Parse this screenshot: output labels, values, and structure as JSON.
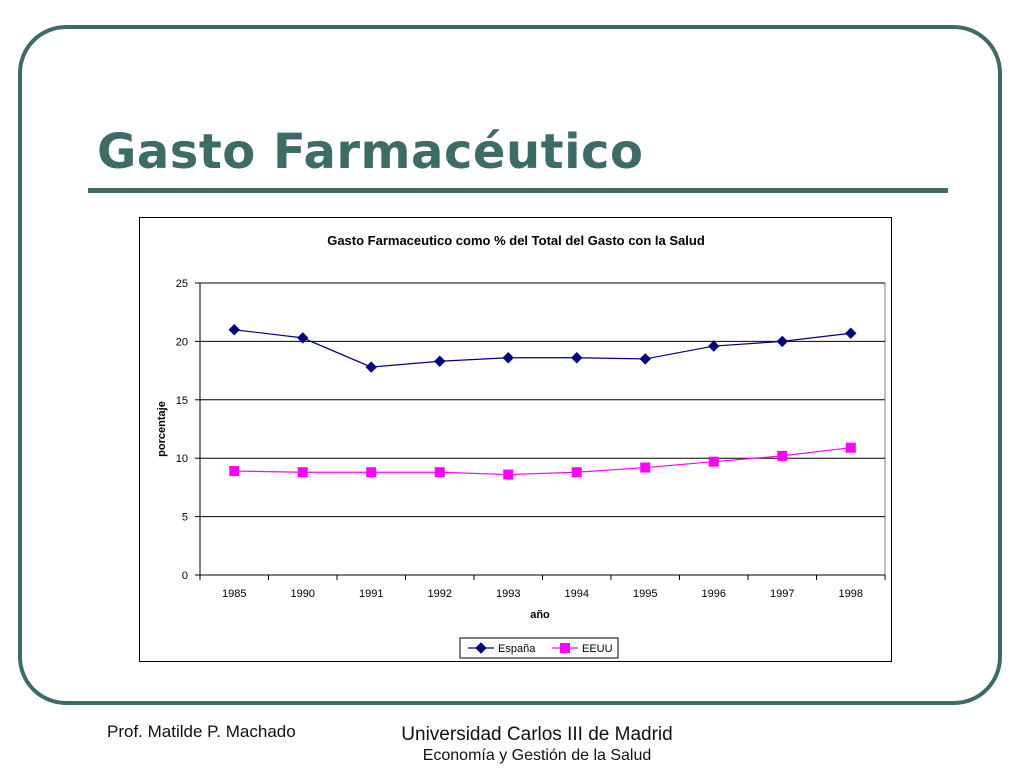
{
  "slide": {
    "title": "Gasto Farmacéutico",
    "footer_author": "Prof. Matilde P. Machado",
    "footer_university": "Universidad Carlos III de Madrid",
    "footer_department": "Economía y Gestión de la Salud"
  },
  "colors": {
    "accent": "#3d6b66",
    "espana": "#000080",
    "eeuu": "#ff00ff"
  },
  "chart_data": {
    "type": "line",
    "title": "Gasto Farmaceutico como % del Total del Gasto con la Salud",
    "xlabel": "año",
    "ylabel": "porcentaje",
    "categories": [
      "1985",
      "1990",
      "1991",
      "1992",
      "1993",
      "1994",
      "1995",
      "1996",
      "1997",
      "1998"
    ],
    "ylim": [
      0,
      25
    ],
    "yticks": [
      "0",
      "5",
      "10",
      "15",
      "20",
      "25"
    ],
    "grid": "horizontal",
    "legend": "bottom-center",
    "series": [
      {
        "name": "España",
        "marker": "diamond",
        "values": [
          21.0,
          20.3,
          17.8,
          18.3,
          18.6,
          18.6,
          18.5,
          19.6,
          20.0,
          20.7
        ]
      },
      {
        "name": "EEUU",
        "marker": "square",
        "values": [
          8.9,
          8.8,
          8.8,
          8.8,
          8.6,
          8.8,
          9.2,
          9.7,
          10.2,
          10.9
        ]
      }
    ]
  }
}
